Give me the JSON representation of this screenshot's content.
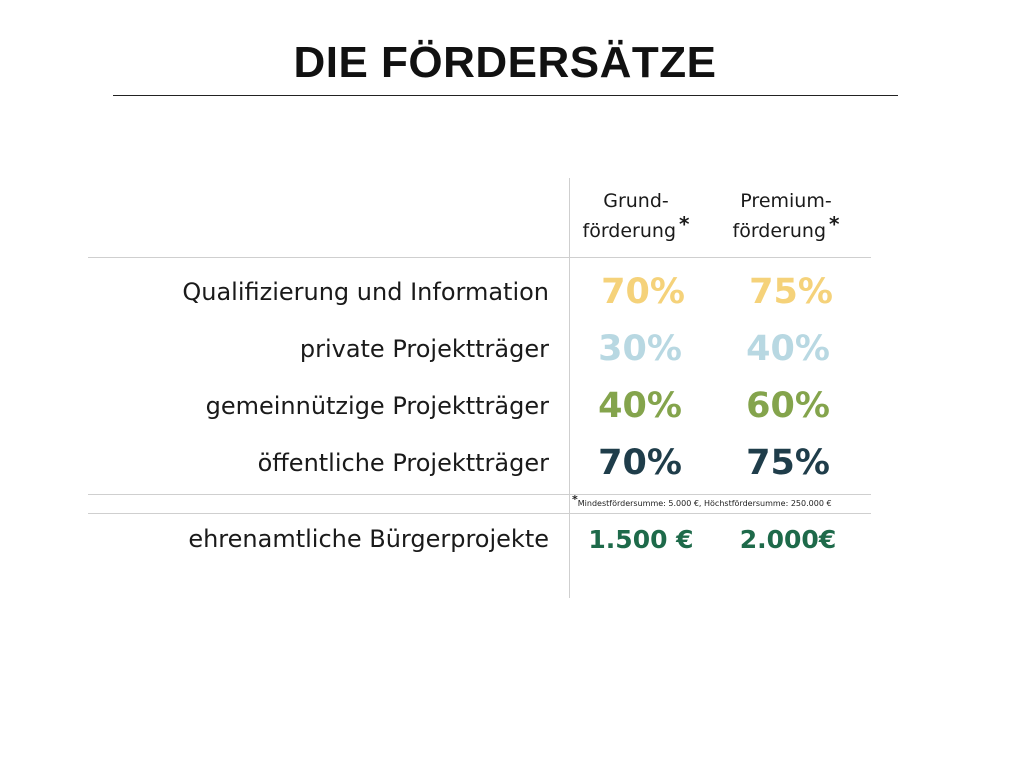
{
  "title": "DIE FÖRDERSÄTZE",
  "columns": [
    {
      "line1": "Grund-",
      "line2": "förderung",
      "marker": "*"
    },
    {
      "line1": "Premium-",
      "line2": "förderung",
      "marker": "*"
    }
  ],
  "rows": [
    {
      "label": "Qualifizierung und Information",
      "grund": "70%",
      "premium": "75%",
      "color": "#f5d27a"
    },
    {
      "label": "private Projektträger",
      "grund": "30%",
      "premium": "40%",
      "color": "#b8d8e2"
    },
    {
      "label": "gemeinnützige Projektträger",
      "grund": "40%",
      "premium": "60%",
      "color": "#84a44c"
    },
    {
      "label": "öffentliche Projektträger",
      "grund": "70%",
      "premium": "75%",
      "color": "#1f3d4a"
    }
  ],
  "footnote": {
    "marker": "*",
    "text": "Mindestfördersumme: 5.000 €, Höchstfördersumme: 250.000 €"
  },
  "volunteer_row": {
    "label": "ehrenamtliche Bürgerprojekte",
    "grund": "1.500 €",
    "premium": "2.000€",
    "color": "#1e6a4a"
  }
}
